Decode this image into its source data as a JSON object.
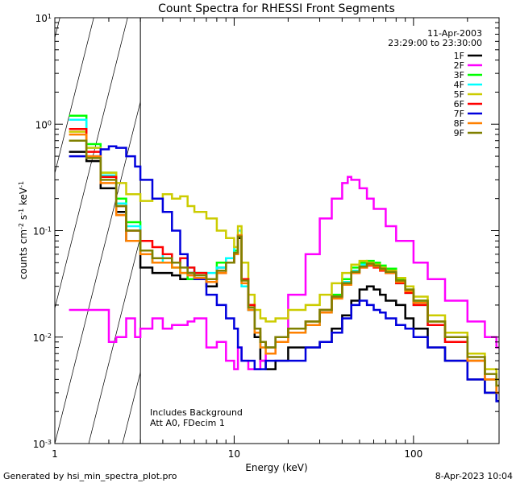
{
  "chart_data": {
    "type": "line",
    "title": "Count Spectra for RHESSI Front Segments",
    "xlabel": "Energy (keV)",
    "ylabel_parts": [
      "counts cm",
      "-2",
      " s",
      "-1",
      " keV",
      "-1"
    ],
    "x_scale": "log",
    "y_scale": "log",
    "xlim": [
      1,
      300
    ],
    "ylim": [
      0.001,
      10
    ],
    "x_tick_labels": [
      {
        "v": 1,
        "label": "1"
      },
      {
        "v": 10,
        "label": "10"
      },
      {
        "v": 100,
        "label": "100"
      }
    ],
    "y_tick_labels": [
      {
        "v": 10,
        "base": "10",
        "exp": "1"
      },
      {
        "v": 1,
        "base": "10",
        "exp": "0"
      },
      {
        "v": 0.1,
        "base": "10",
        "exp": "-1"
      },
      {
        "v": 0.01,
        "base": "10",
        "exp": "-2"
      },
      {
        "v": 0.001,
        "base": "10",
        "exp": "-3"
      }
    ],
    "date": "11-Apr-2003",
    "time_range": "23:29:00 to 23:30:00",
    "attenuator_note": "Includes Background",
    "attenuator_state": "Att A0, FDecim 1",
    "shaded_region_below_kev": 3,
    "series": [
      {
        "name": "1F",
        "color": "#000000",
        "x": [
          1.2,
          1.5,
          1.8,
          2.2,
          2.5,
          3,
          3.5,
          4,
          4.5,
          5,
          5.5,
          6,
          7,
          8,
          9,
          10,
          10.5,
          11,
          12,
          13,
          14,
          15,
          17,
          20,
          25,
          30,
          35,
          40,
          45,
          50,
          55,
          60,
          65,
          70,
          80,
          90,
          100,
          120,
          150,
          200,
          250,
          290
        ],
        "y": [
          0.55,
          0.45,
          0.25,
          0.15,
          0.08,
          0.045,
          0.04,
          0.04,
          0.038,
          0.035,
          0.04,
          0.035,
          0.03,
          0.045,
          0.05,
          0.06,
          0.085,
          0.035,
          0.018,
          0.01,
          0.006,
          0.005,
          0.006,
          0.008,
          0.008,
          0.009,
          0.012,
          0.016,
          0.022,
          0.028,
          0.03,
          0.028,
          0.025,
          0.022,
          0.02,
          0.015,
          0.012,
          0.008,
          0.006,
          0.004,
          0.003,
          0.0025
        ]
      },
      {
        "name": "2F",
        "color": "#ff00ff",
        "x": [
          1.2,
          1.5,
          1.8,
          2,
          2.2,
          2.5,
          2.8,
          3,
          3.5,
          4,
          4.5,
          5,
          5.5,
          6,
          7,
          8,
          9,
          10,
          10.5,
          11,
          12,
          13,
          14,
          15,
          17,
          20,
          25,
          30,
          35,
          40,
          43,
          45,
          50,
          55,
          60,
          70,
          80,
          100,
          120,
          150,
          200,
          250,
          290
        ],
        "y": [
          0.018,
          0.018,
          0.018,
          0.009,
          0.01,
          0.015,
          0.01,
          0.012,
          0.015,
          0.012,
          0.013,
          0.013,
          0.014,
          0.015,
          0.008,
          0.009,
          0.006,
          0.005,
          0.008,
          0.006,
          0.005,
          0.005,
          0.006,
          0.007,
          0.01,
          0.025,
          0.06,
          0.13,
          0.2,
          0.28,
          0.32,
          0.3,
          0.25,
          0.2,
          0.16,
          0.11,
          0.08,
          0.05,
          0.035,
          0.022,
          0.014,
          0.01,
          0.008
        ]
      },
      {
        "name": "3F",
        "color": "#00ff00",
        "x": [
          1.2,
          1.5,
          1.8,
          2.2,
          2.5,
          3,
          3.5,
          4,
          4.5,
          5,
          5.5,
          6,
          7,
          8,
          9,
          10,
          10.5,
          11,
          12,
          13,
          14,
          15,
          17,
          20,
          25,
          30,
          35,
          40,
          45,
          50,
          55,
          60,
          65,
          70,
          80,
          90,
          100,
          120,
          150,
          200,
          250,
          290
        ],
        "y": [
          1.2,
          0.65,
          0.35,
          0.2,
          0.12,
          0.065,
          0.05,
          0.05,
          0.045,
          0.04,
          0.035,
          0.04,
          0.035,
          0.05,
          0.055,
          0.065,
          0.09,
          0.035,
          0.02,
          0.012,
          0.009,
          0.008,
          0.01,
          0.012,
          0.014,
          0.018,
          0.025,
          0.035,
          0.045,
          0.05,
          0.052,
          0.05,
          0.047,
          0.044,
          0.035,
          0.028,
          0.022,
          0.014,
          0.01,
          0.006,
          0.004,
          0.003
        ]
      },
      {
        "name": "4F",
        "color": "#00ffff",
        "x": [
          1.2,
          1.5,
          1.8,
          2.2,
          2.5,
          3,
          3.5,
          4,
          4.5,
          5,
          5.5,
          6,
          7,
          8,
          9,
          10,
          10.5,
          11,
          12,
          13,
          14,
          15,
          17,
          20,
          25,
          30,
          35,
          40,
          45,
          50,
          55,
          60,
          65,
          70,
          80,
          90,
          100,
          120,
          150,
          200,
          250,
          290
        ],
        "y": [
          1.1,
          0.6,
          0.33,
          0.18,
          0.11,
          0.06,
          0.05,
          0.06,
          0.05,
          0.055,
          0.045,
          0.04,
          0.04,
          0.045,
          0.055,
          0.07,
          0.1,
          0.03,
          0.018,
          0.011,
          0.008,
          0.008,
          0.01,
          0.011,
          0.013,
          0.017,
          0.024,
          0.033,
          0.042,
          0.048,
          0.05,
          0.048,
          0.044,
          0.04,
          0.032,
          0.026,
          0.02,
          0.013,
          0.009,
          0.006,
          0.004,
          0.003
        ]
      },
      {
        "name": "5F",
        "color": "#cccc00",
        "x": [
          1.2,
          1.5,
          1.8,
          2.2,
          2.5,
          3,
          3.5,
          4,
          4.5,
          5,
          5.5,
          6,
          7,
          8,
          9,
          10,
          10.5,
          11,
          12,
          13,
          14,
          15,
          17,
          20,
          25,
          30,
          35,
          40,
          45,
          50,
          55,
          60,
          65,
          70,
          80,
          90,
          100,
          120,
          150,
          200,
          250,
          290
        ],
        "y": [
          0.85,
          0.6,
          0.35,
          0.28,
          0.22,
          0.19,
          0.2,
          0.22,
          0.2,
          0.21,
          0.17,
          0.15,
          0.13,
          0.1,
          0.085,
          0.07,
          0.11,
          0.05,
          0.025,
          0.018,
          0.015,
          0.014,
          0.015,
          0.018,
          0.02,
          0.025,
          0.032,
          0.04,
          0.048,
          0.052,
          0.05,
          0.048,
          0.045,
          0.042,
          0.036,
          0.03,
          0.024,
          0.016,
          0.011,
          0.007,
          0.005,
          0.004
        ]
      },
      {
        "name": "6F",
        "color": "#ff0000",
        "x": [
          1.2,
          1.5,
          1.8,
          2.2,
          2.5,
          3,
          3.5,
          4,
          4.5,
          5,
          5.5,
          6,
          7,
          8,
          9,
          10,
          10.5,
          11,
          12,
          13,
          14,
          15,
          17,
          20,
          25,
          30,
          35,
          40,
          45,
          50,
          55,
          60,
          65,
          70,
          80,
          90,
          100,
          120,
          150,
          200,
          250,
          290
        ],
        "y": [
          0.9,
          0.55,
          0.32,
          0.17,
          0.1,
          0.08,
          0.07,
          0.06,
          0.05,
          0.055,
          0.045,
          0.04,
          0.035,
          0.04,
          0.05,
          0.06,
          0.09,
          0.035,
          0.02,
          0.012,
          0.009,
          0.008,
          0.01,
          0.012,
          0.014,
          0.018,
          0.024,
          0.032,
          0.04,
          0.045,
          0.047,
          0.045,
          0.042,
          0.04,
          0.032,
          0.026,
          0.02,
          0.013,
          0.009,
          0.006,
          0.004,
          0.003
        ]
      },
      {
        "name": "7F",
        "color": "#0000dd",
        "x": [
          1.2,
          1.5,
          1.8,
          2,
          2.2,
          2.5,
          2.8,
          3,
          3.5,
          4,
          4.5,
          5,
          5.5,
          6,
          7,
          8,
          9,
          10,
          10.5,
          11,
          12,
          13,
          14,
          15,
          17,
          20,
          25,
          30,
          35,
          40,
          45,
          50,
          55,
          60,
          65,
          70,
          80,
          90,
          100,
          120,
          150,
          200,
          250,
          290
        ],
        "y": [
          0.5,
          0.5,
          0.58,
          0.62,
          0.6,
          0.5,
          0.4,
          0.3,
          0.2,
          0.15,
          0.1,
          0.06,
          0.04,
          0.035,
          0.025,
          0.02,
          0.015,
          0.012,
          0.008,
          0.006,
          0.006,
          0.005,
          0.005,
          0.006,
          0.006,
          0.006,
          0.008,
          0.009,
          0.011,
          0.015,
          0.02,
          0.022,
          0.02,
          0.018,
          0.017,
          0.015,
          0.013,
          0.012,
          0.01,
          0.008,
          0.006,
          0.004,
          0.003,
          0.0025
        ]
      },
      {
        "name": "8F",
        "color": "#ff8000",
        "x": [
          1.2,
          1.5,
          1.8,
          2.2,
          2.5,
          3,
          3.5,
          4,
          4.5,
          5,
          5.5,
          6,
          7,
          8,
          9,
          10,
          10.5,
          11,
          12,
          13,
          14,
          15,
          17,
          20,
          25,
          30,
          35,
          40,
          45,
          50,
          55,
          60,
          65,
          70,
          80,
          90,
          100,
          120,
          150,
          200,
          250,
          290
        ],
        "y": [
          0.8,
          0.5,
          0.28,
          0.14,
          0.08,
          0.06,
          0.05,
          0.05,
          0.045,
          0.04,
          0.038,
          0.036,
          0.033,
          0.04,
          0.05,
          0.06,
          0.09,
          0.032,
          0.018,
          0.011,
          0.008,
          0.007,
          0.009,
          0.011,
          0.013,
          0.017,
          0.023,
          0.031,
          0.04,
          0.045,
          0.048,
          0.046,
          0.043,
          0.04,
          0.033,
          0.027,
          0.021,
          0.014,
          0.01,
          0.006,
          0.004,
          0.003
        ]
      },
      {
        "name": "9F",
        "color": "#808000",
        "x": [
          1.2,
          1.5,
          1.8,
          2.2,
          2.5,
          3,
          3.5,
          4,
          4.5,
          5,
          5.5,
          6,
          7,
          8,
          9,
          10,
          10.5,
          11,
          12,
          13,
          14,
          15,
          17,
          20,
          25,
          30,
          35,
          40,
          45,
          50,
          55,
          60,
          65,
          70,
          80,
          90,
          100,
          120,
          150,
          200,
          250,
          290
        ],
        "y": [
          0.7,
          0.48,
          0.3,
          0.17,
          0.1,
          0.065,
          0.055,
          0.055,
          0.05,
          0.045,
          0.04,
          0.038,
          0.035,
          0.042,
          0.05,
          0.062,
          0.088,
          0.034,
          0.019,
          0.012,
          0.009,
          0.008,
          0.01,
          0.012,
          0.014,
          0.018,
          0.024,
          0.032,
          0.041,
          0.046,
          0.049,
          0.047,
          0.044,
          0.041,
          0.034,
          0.028,
          0.022,
          0.014,
          0.01,
          0.0065,
          0.0045,
          0.0035
        ]
      }
    ]
  },
  "footer": {
    "generated_by": "Generated by hsi_min_spectra_plot.pro",
    "timestamp": "8-Apr-2023 10:04"
  }
}
